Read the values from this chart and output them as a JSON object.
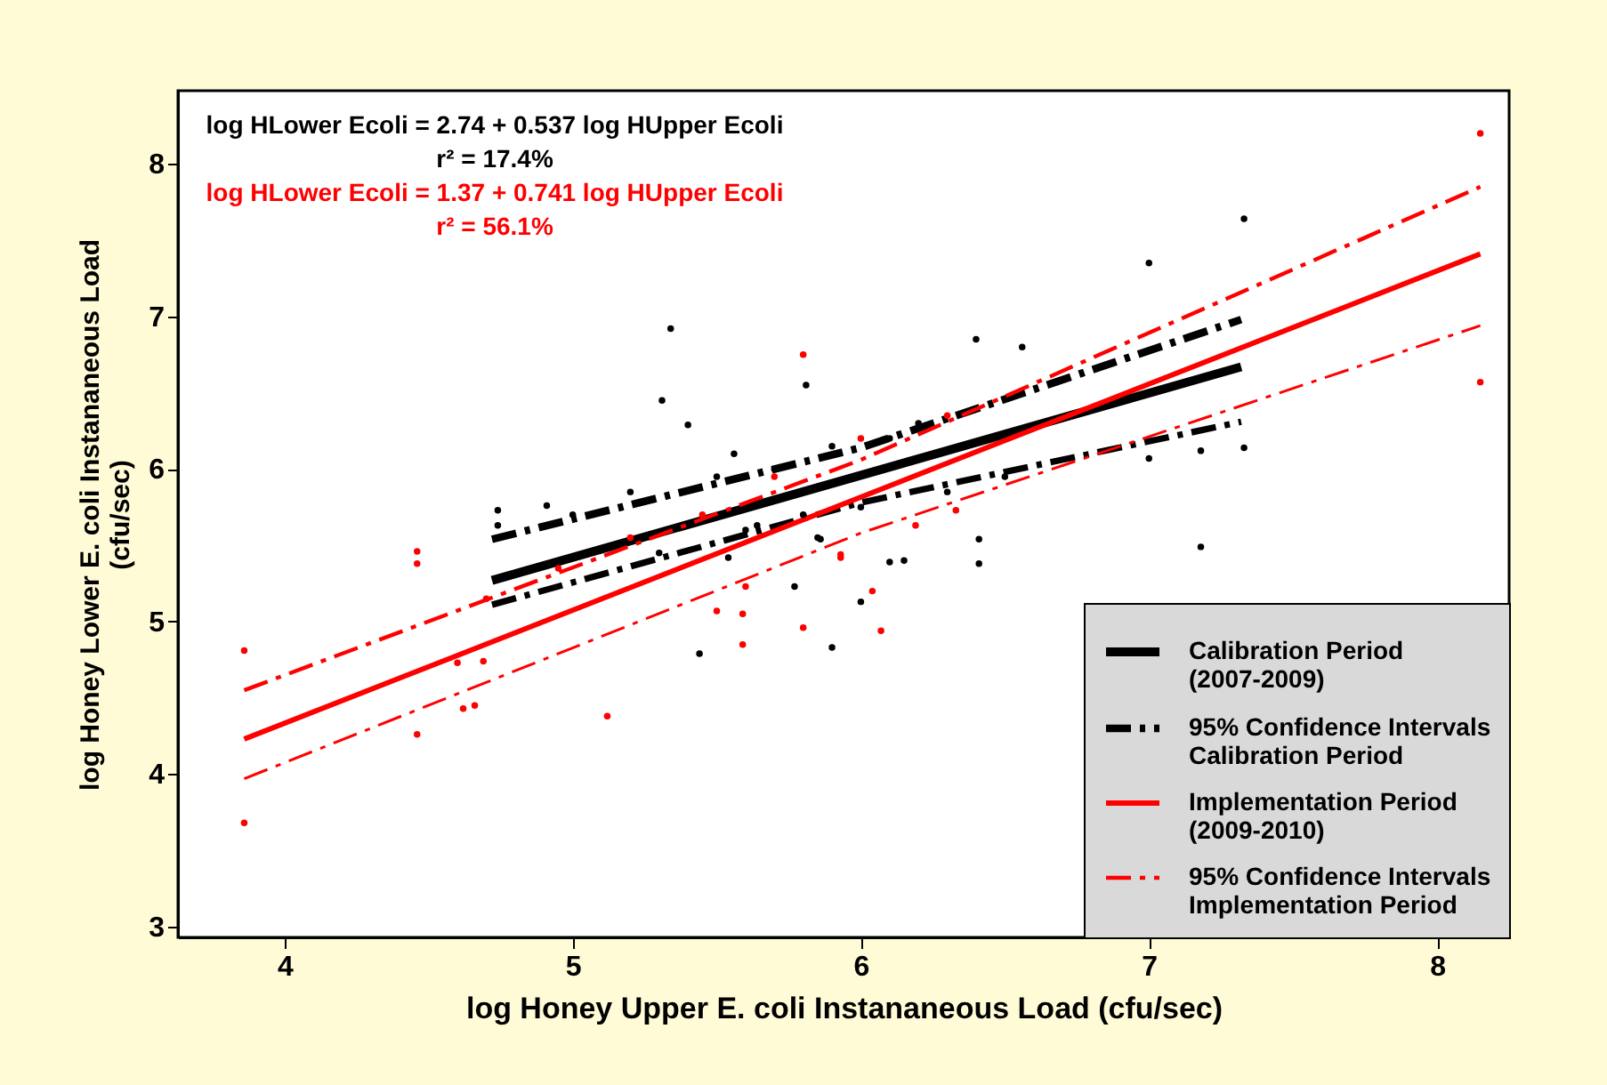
{
  "chart_data": {
    "type": "scatter",
    "xlabel": "log Honey Upper E. coli Instananeous Load (cfu/sec)",
    "ylabel": "log Honey Lower E. coli Instananeous Load\n(cfu/sec)",
    "xlim": [
      3.63,
      8.25
    ],
    "ylim": [
      2.93,
      8.48
    ],
    "xticks": [
      4,
      5,
      6,
      7,
      8
    ],
    "yticks": [
      3,
      4,
      5,
      6,
      7,
      8
    ],
    "grid": false,
    "legend": "bottom right",
    "annotations": [
      "log HLower Ecoli = 2.74 + 0.537 log HUpper Ecoli",
      "r² = 17.4%",
      "log HLower Ecoli = 1.37 + 0.741 log HUpper Ecoli",
      "r² = 56.1%"
    ],
    "series": [
      {
        "type": "scatter",
        "marker": "circle",
        "color": "#000000",
        "x": [
          5.34,
          5.81,
          5.31,
          5.4,
          5.56,
          4.74,
          4.91,
          7.33,
          7.0,
          6.4,
          6.56,
          7.0,
          7.18,
          7.33,
          6.41,
          6.41,
          7.18,
          6.1,
          6.15,
          6.0,
          5.9,
          5.85,
          4.74,
          5.44,
          5.77,
          5.54,
          5.64,
          5.86,
          5.0,
          5.2,
          5.5,
          5.7,
          5.9,
          6.1,
          6.2,
          5.3,
          5.6,
          5.8,
          6.0,
          6.3,
          6.5
        ],
        "values": [
          6.92,
          6.55,
          6.45,
          6.29,
          6.1,
          5.73,
          5.76,
          7.64,
          7.35,
          6.85,
          6.8,
          6.07,
          6.12,
          6.14,
          5.54,
          5.38,
          5.49,
          5.39,
          5.4,
          5.13,
          4.83,
          5.55,
          5.63,
          4.79,
          5.23,
          5.42,
          5.63,
          5.54,
          5.7,
          5.85,
          5.95,
          6.0,
          6.15,
          6.2,
          6.3,
          5.45,
          5.6,
          5.7,
          5.75,
          5.85,
          5.95
        ]
      },
      {
        "type": "scatter",
        "marker": "circle",
        "color": "#ff0000",
        "x": [
          5.8,
          8.15,
          8.15,
          3.86,
          3.86,
          4.46,
          4.46,
          4.46,
          5.12,
          4.6,
          4.69,
          4.62,
          4.66,
          5.59,
          5.8,
          5.59,
          5.5,
          5.93,
          5.6,
          6.07,
          6.04,
          5.93,
          6.19,
          6.33,
          4.95,
          5.2,
          5.45,
          5.7,
          6.0,
          6.3,
          4.7
        ],
        "values": [
          6.75,
          8.2,
          6.57,
          4.81,
          3.68,
          5.46,
          5.38,
          4.26,
          4.38,
          4.73,
          4.74,
          4.43,
          4.45,
          4.85,
          4.96,
          5.05,
          5.07,
          5.44,
          5.23,
          4.94,
          5.2,
          5.42,
          5.63,
          5.73,
          5.35,
          5.55,
          5.7,
          5.95,
          6.2,
          6.35,
          5.15
        ]
      },
      {
        "type": "line",
        "name": "Calibration Period\n(2007-2009)",
        "color": "#000000",
        "line_style": "solid",
        "x": [
          4.72,
          7.32
        ],
        "values": [
          5.27,
          6.67
        ]
      },
      {
        "type": "line",
        "name": "95% Confidence Intervals\nCalibration Period",
        "color": "#000000",
        "line_style": "dashed",
        "x": [
          4.72,
          6.0,
          7.32
        ],
        "values": [
          5.54,
          6.14,
          6.98
        ]
      },
      {
        "type": "line",
        "color": "#000000",
        "line_style": "dashed",
        "x": [
          4.72,
          6.0,
          7.32
        ],
        "values": [
          5.11,
          5.78,
          6.31
        ]
      },
      {
        "type": "line",
        "name": "Implementation Period\n(2009-2010)",
        "color": "#ff0000",
        "line_style": "solid",
        "x": [
          3.86,
          8.15
        ],
        "values": [
          4.23,
          7.41
        ]
      },
      {
        "type": "line",
        "name": "95% Confidence Intervals\nImplementation Period",
        "color": "#ff0000",
        "line_style": "dashed",
        "x": [
          3.86,
          6.0,
          8.15
        ],
        "values": [
          4.55,
          6.06,
          7.85
        ]
      },
      {
        "type": "line",
        "color": "#ff0000",
        "line_style": "dashed",
        "x": [
          3.86,
          6.0,
          8.15
        ],
        "values": [
          3.97,
          5.58,
          6.94
        ]
      }
    ]
  }
}
